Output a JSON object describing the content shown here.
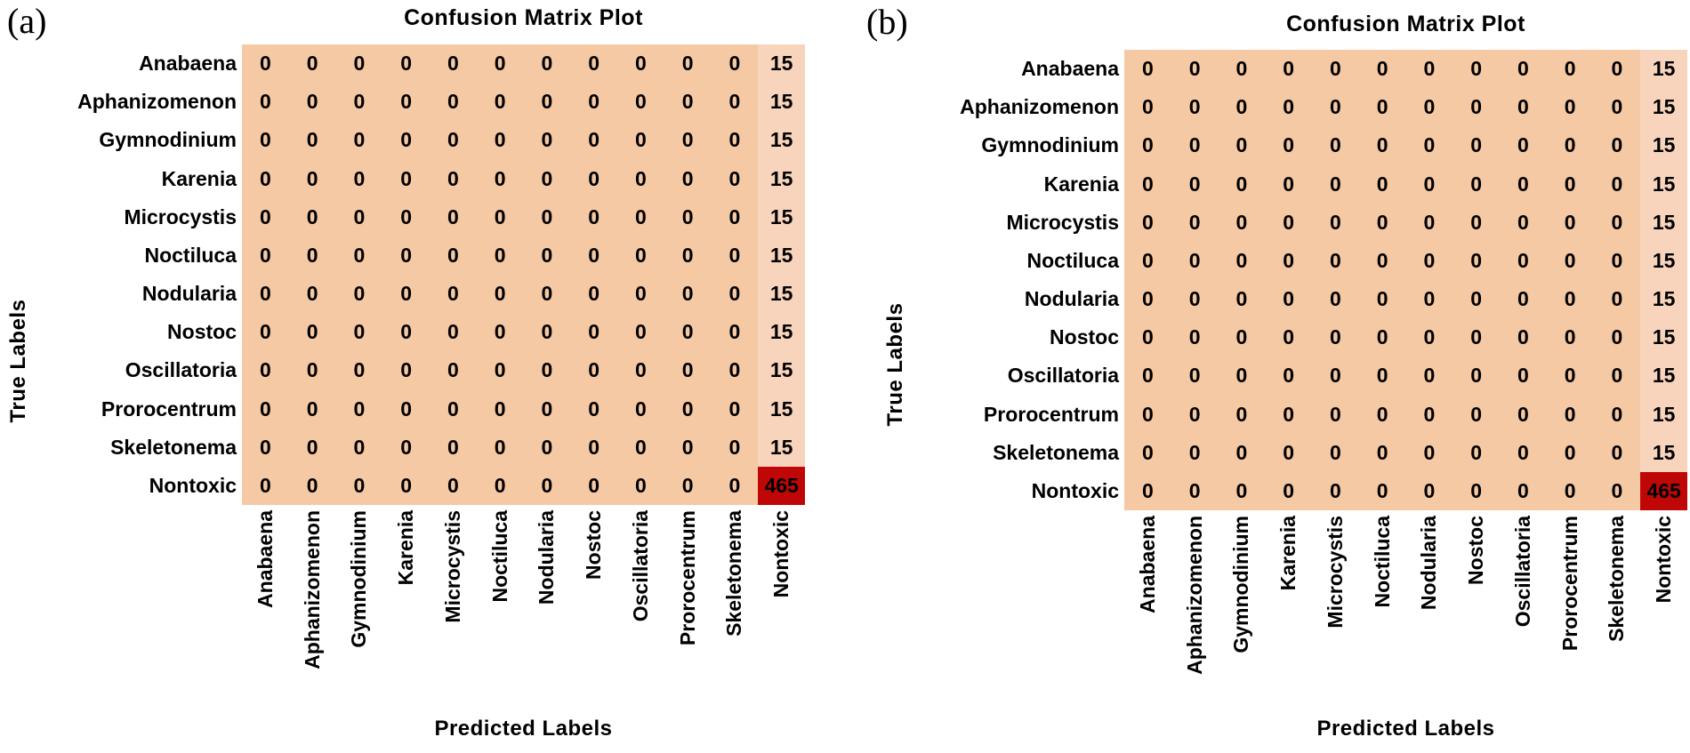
{
  "colors": {
    "cell_zero": "#F6C9A5",
    "cell_fifteen": "#F8D4BC",
    "cell_max": "#C00707",
    "text": "#000000",
    "background": "#FFFFFF"
  },
  "chart_data": [
    {
      "type": "heatmap",
      "panel_tag": "(a)",
      "title": "Confusion Matrix Plot",
      "xlabel": "Predicted Labels",
      "ylabel": "True Labels",
      "x_categories": [
        "Anabaena",
        "Aphanizomenon",
        "Gymnodinium",
        "Karenia",
        "Microcystis",
        "Noctiluca",
        "Nodularia",
        "Nostoc",
        "Oscillatoria",
        "Prorocentrum",
        "Skeletonema",
        "Nontoxic"
      ],
      "y_categories": [
        "Anabaena",
        "Aphanizomenon",
        "Gymnodinium",
        "Karenia",
        "Microcystis",
        "Noctiluca",
        "Nodularia",
        "Nostoc",
        "Oscillatoria",
        "Prorocentrum",
        "Skeletonema",
        "Nontoxic"
      ],
      "values": [
        [
          0,
          0,
          0,
          0,
          0,
          0,
          0,
          0,
          0,
          0,
          0,
          15
        ],
        [
          0,
          0,
          0,
          0,
          0,
          0,
          0,
          0,
          0,
          0,
          0,
          15
        ],
        [
          0,
          0,
          0,
          0,
          0,
          0,
          0,
          0,
          0,
          0,
          0,
          15
        ],
        [
          0,
          0,
          0,
          0,
          0,
          0,
          0,
          0,
          0,
          0,
          0,
          15
        ],
        [
          0,
          0,
          0,
          0,
          0,
          0,
          0,
          0,
          0,
          0,
          0,
          15
        ],
        [
          0,
          0,
          0,
          0,
          0,
          0,
          0,
          0,
          0,
          0,
          0,
          15
        ],
        [
          0,
          0,
          0,
          0,
          0,
          0,
          0,
          0,
          0,
          0,
          0,
          15
        ],
        [
          0,
          0,
          0,
          0,
          0,
          0,
          0,
          0,
          0,
          0,
          0,
          15
        ],
        [
          0,
          0,
          0,
          0,
          0,
          0,
          0,
          0,
          0,
          0,
          0,
          15
        ],
        [
          0,
          0,
          0,
          0,
          0,
          0,
          0,
          0,
          0,
          0,
          0,
          15
        ],
        [
          0,
          0,
          0,
          0,
          0,
          0,
          0,
          0,
          0,
          0,
          0,
          15
        ],
        [
          0,
          0,
          0,
          0,
          0,
          0,
          0,
          0,
          0,
          0,
          0,
          465
        ]
      ],
      "value_range": [
        0,
        465
      ],
      "colormap": "red-scale",
      "legend": "none",
      "grid": false
    },
    {
      "type": "heatmap",
      "panel_tag": "(b)",
      "title": "Confusion Matrix Plot",
      "xlabel": "Predicted Labels",
      "ylabel": "True Labels",
      "x_categories": [
        "Anabaena",
        "Aphanizomenon",
        "Gymnodinium",
        "Karenia",
        "Microcystis",
        "Noctiluca",
        "Nodularia",
        "Nostoc",
        "Oscillatoria",
        "Prorocentrum",
        "Skeletonema",
        "Nontoxic"
      ],
      "y_categories": [
        "Anabaena",
        "Aphanizomenon",
        "Gymnodinium",
        "Karenia",
        "Microcystis",
        "Noctiluca",
        "Nodularia",
        "Nostoc",
        "Oscillatoria",
        "Prorocentrum",
        "Skeletonema",
        "Nontoxic"
      ],
      "values": [
        [
          0,
          0,
          0,
          0,
          0,
          0,
          0,
          0,
          0,
          0,
          0,
          15
        ],
        [
          0,
          0,
          0,
          0,
          0,
          0,
          0,
          0,
          0,
          0,
          0,
          15
        ],
        [
          0,
          0,
          0,
          0,
          0,
          0,
          0,
          0,
          0,
          0,
          0,
          15
        ],
        [
          0,
          0,
          0,
          0,
          0,
          0,
          0,
          0,
          0,
          0,
          0,
          15
        ],
        [
          0,
          0,
          0,
          0,
          0,
          0,
          0,
          0,
          0,
          0,
          0,
          15
        ],
        [
          0,
          0,
          0,
          0,
          0,
          0,
          0,
          0,
          0,
          0,
          0,
          15
        ],
        [
          0,
          0,
          0,
          0,
          0,
          0,
          0,
          0,
          0,
          0,
          0,
          15
        ],
        [
          0,
          0,
          0,
          0,
          0,
          0,
          0,
          0,
          0,
          0,
          0,
          15
        ],
        [
          0,
          0,
          0,
          0,
          0,
          0,
          0,
          0,
          0,
          0,
          0,
          15
        ],
        [
          0,
          0,
          0,
          0,
          0,
          0,
          0,
          0,
          0,
          0,
          0,
          15
        ],
        [
          0,
          0,
          0,
          0,
          0,
          0,
          0,
          0,
          0,
          0,
          0,
          15
        ],
        [
          0,
          0,
          0,
          0,
          0,
          0,
          0,
          0,
          0,
          0,
          0,
          465
        ]
      ],
      "value_range": [
        0,
        465
      ],
      "colormap": "red-scale",
      "legend": "none",
      "grid": false
    }
  ]
}
